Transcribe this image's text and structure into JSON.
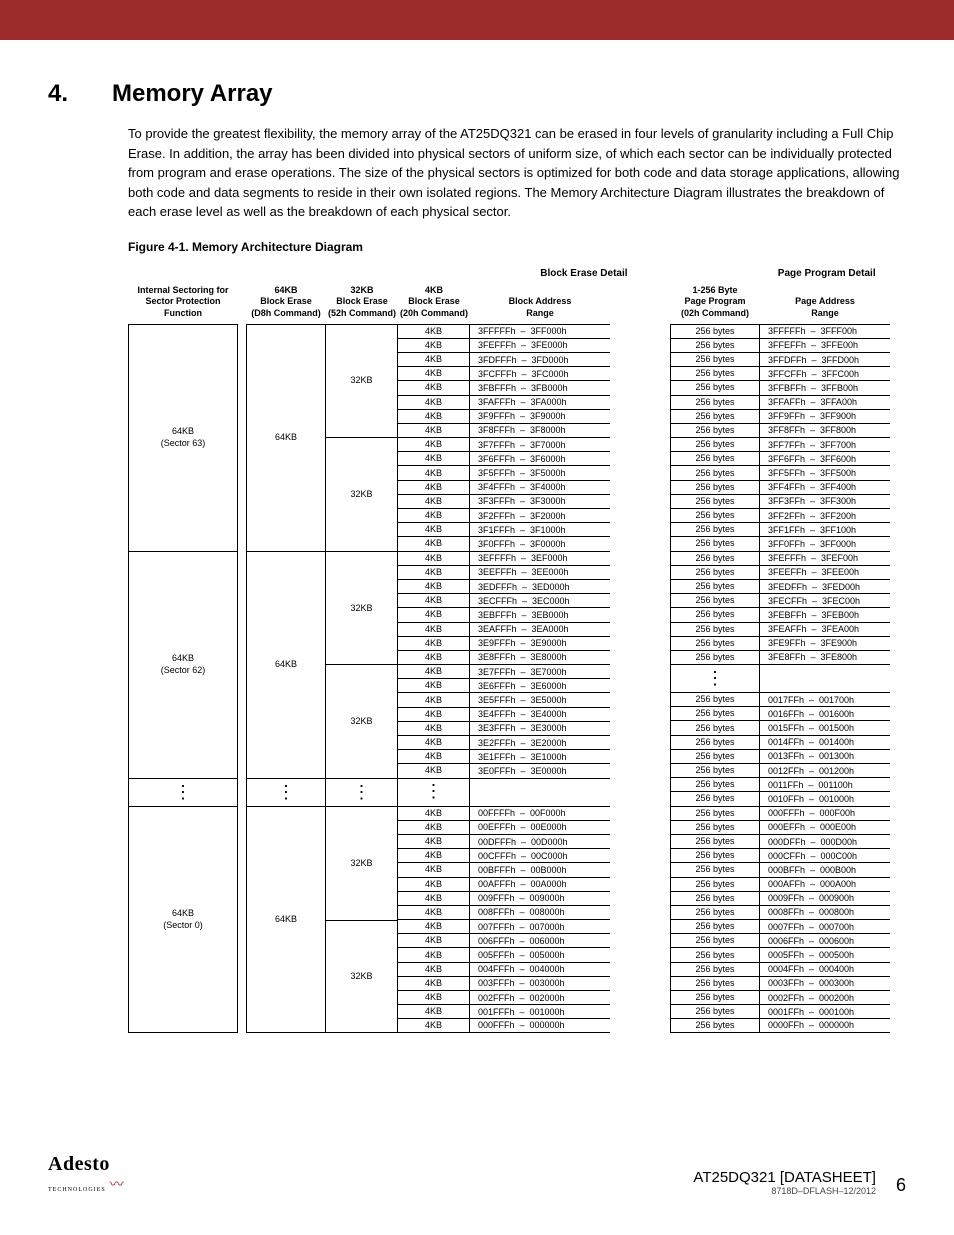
{
  "section": {
    "number": "4.",
    "title": "Memory Array"
  },
  "paragraph": "To provide the greatest flexibility, the memory array of the AT25DQ321 can be erased in four levels of granularity including a Full Chip Erase. In addition, the array has been divided into physical sectors of uniform size, of which each sector can be individually protected from program and erase operations. The size of the physical sectors is optimized for both code and data storage applications, allowing both code and data segments to reside in their own isolated regions. The Memory Architecture Diagram illustrates the breakdown of each erase level as well as the breakdown of each physical sector.",
  "figure_caption": "Figure 4-1.   Memory Architecture Diagram",
  "group_headers": {
    "left": "Block Erase Detail",
    "right": "Page Program Detail"
  },
  "col_headers": {
    "internal": "Internal Sectoring for\nSector Protection\nFunction",
    "b64": "64KB\nBlock Erase\n(D8h Command)",
    "b32": "32KB\nBlock Erase\n(52h Command)",
    "b4": "4KB\nBlock Erase\n(20h Command)",
    "addr": "Block Address\nRange",
    "pp": "1-256 Byte\nPage Program\n(02h Command)",
    "paddr": "Page Address\nRange"
  },
  "cell_labels": {
    "kb4": "4KB",
    "kb32": "32KB",
    "kb64": "64KB",
    "bytes256": "256 bytes"
  },
  "sectors": {
    "s63": "64KB\n(Sector 63)",
    "s62": "64KB\n(Sector 62)",
    "s0": "64KB\n(Sector 0)"
  },
  "addr_sector63": [
    "3FFFFFh  –  3FF000h",
    "3FEFFFh  –  3FE000h",
    "3FDFFFh  –  3FD000h",
    "3FCFFFh  –  3FC000h",
    "3FBFFFh  –  3FB000h",
    "3FAFFFh  –  3FA000h",
    "3F9FFFh  –  3F9000h",
    "3F8FFFh  –  3F8000h",
    "3F7FFFh  –  3F7000h",
    "3F6FFFh  –  3F6000h",
    "3F5FFFh  –  3F5000h",
    "3F4FFFh  –  3F4000h",
    "3F3FFFh  –  3F3000h",
    "3F2FFFh  –  3F2000h",
    "3F1FFFh  –  3F1000h",
    "3F0FFFh  –  3F0000h"
  ],
  "addr_sector62": [
    "3EFFFFh  –  3EF000h",
    "3EEFFFh  –  3EE000h",
    "3EDFFFh  –  3ED000h",
    "3ECFFFh  –  3EC000h",
    "3EBFFFh  –  3EB000h",
    "3EAFFFh  –  3EA000h",
    "3E9FFFh  –  3E9000h",
    "3E8FFFh  –  3E8000h",
    "3E7FFFh  –  3E7000h",
    "3E6FFFh  –  3E6000h",
    "3E5FFFh  –  3E5000h",
    "3E4FFFh  –  3E4000h",
    "3E3FFFh  –  3E3000h",
    "3E2FFFh  –  3E2000h",
    "3E1FFFh  –  3E1000h",
    "3E0FFFh  –  3E0000h"
  ],
  "addr_sector0": [
    "00FFFFh  –  00F000h",
    "00EFFFh  –  00E000h",
    "00DFFFh  –  00D000h",
    "00CFFFh  –  00C000h",
    "00BFFFh  –  00B000h",
    "00AFFFh  –  00A000h",
    "009FFFh  –  009000h",
    "008FFFh  –  008000h",
    "007FFFh  –  007000h",
    "006FFFh  –  006000h",
    "005FFFh  –  005000h",
    "004FFFh  –  004000h",
    "003FFFh  –  003000h",
    "002FFFh  –  002000h",
    "001FFFh  –  001000h",
    "000FFFh  –  000000h"
  ],
  "paddr_top": [
    "3FFFFFh  –  3FFF00h",
    "3FFEFFh  –  3FFE00h",
    "3FFDFFh  –  3FFD00h",
    "3FFCFFh  –  3FFC00h",
    "3FFBFFh  –  3FFB00h",
    "3FFAFFh  –  3FFA00h",
    "3FF9FFh  –  3FF900h",
    "3FF8FFh  –  3FF800h",
    "3FF7FFh  –  3FF700h",
    "3FF6FFh  –  3FF600h",
    "3FF5FFh  –  3FF500h",
    "3FF4FFh  –  3FF400h",
    "3FF3FFh  –  3FF300h",
    "3FF2FFh  –  3FF200h",
    "3FF1FFh  –  3FF100h",
    "3FF0FFh  –  3FF000h",
    "3FEFFFh  –  3FEF00h",
    "3FEEFFh  –  3FEE00h",
    "3FEDFFh  –  3FED00h",
    "3FECFFh  –  3FEC00h",
    "3FEBFFh  –  3FEB00h",
    "3FEAFFh  –  3FEA00h",
    "3FE9FFh  –  3FE900h",
    "3FE8FFh  –  3FE800h"
  ],
  "paddr_bottom": [
    "0017FFh  –  001700h",
    "0016FFh  –  001600h",
    "0015FFh  –  001500h",
    "0014FFh  –  001400h",
    "0013FFh  –  001300h",
    "0012FFh  –  001200h",
    "0011FFh  –  001100h",
    "0010FFh  –  001000h",
    "000FFFh  –  000F00h",
    "000EFFh  –  000E00h",
    "000DFFh  –  000D00h",
    "000CFFh  –  000C00h",
    "000BFFh  –  000B00h",
    "000AFFh  –  000A00h",
    "0009FFh  –  000900h",
    "0008FFh  –  000800h",
    "0007FFh  –  000700h",
    "0006FFh  –  000600h",
    "0005FFh  –  000500h",
    "0004FFh  –  000400h",
    "0003FFh  –  000300h",
    "0002FFh  –  000200h",
    "0001FFh  –  000100h",
    "0000FFh  –  000000h"
  ],
  "footer": {
    "logo_main": "Adesto",
    "logo_sub": "TECHNOLOGIES",
    "doc_title": "AT25DQ321 [DATASHEET]",
    "doc_sub": "8718D–DFLASH–12/2012",
    "page": "6"
  },
  "colors": {
    "header_bar": "#9c2c2c"
  }
}
